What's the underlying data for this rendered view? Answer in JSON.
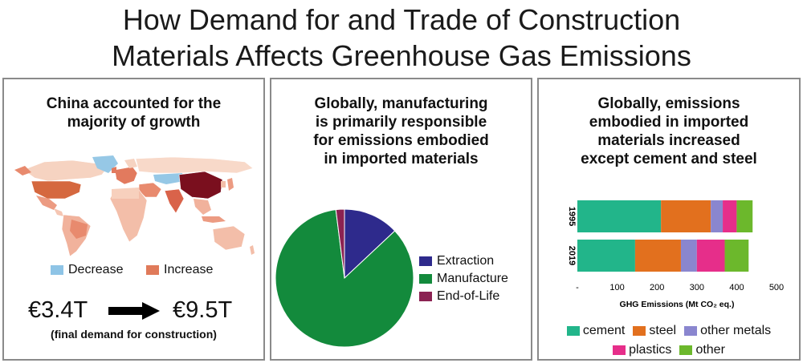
{
  "title": {
    "line1": "How Demand for and Trade of Construction",
    "line2": "Materials Affects Greenhouse Gas Emissions"
  },
  "panel1": {
    "title_lines": [
      "China accounted for the",
      "majority of growth"
    ],
    "legend": [
      {
        "label": "Decrease",
        "color": "#8ec4e6"
      },
      {
        "label": "Increase",
        "color": "#e07a5a"
      }
    ],
    "value_from": "€3.4T",
    "value_to": "€9.5T",
    "caption": "(final demand for construction)",
    "arrow_icon": "right-arrow-icon"
  },
  "panel2": {
    "title_lines": [
      "Globally, manufacturing",
      "is primarily responsible",
      "for emissions embodied",
      "in imported materials"
    ],
    "chart_data": {
      "type": "pie",
      "slices": [
        {
          "label": "Extraction",
          "value": 13,
          "color": "#2e2a8c"
        },
        {
          "label": "Manufacture",
          "value": 85,
          "color": "#138a3c"
        },
        {
          "label": "End-of-Life",
          "value": 2,
          "color": "#8b2252"
        }
      ]
    }
  },
  "panel3": {
    "title_lines": [
      "Globally, emissions",
      "embodied in imported",
      "materials increased",
      "except cement and steel"
    ],
    "chart_data": {
      "type": "bar",
      "orientation": "horizontal",
      "stacked": true,
      "categories": [
        "1995",
        "2019"
      ],
      "series": [
        {
          "name": "cement",
          "color": "#22b58a",
          "values": [
            210,
            145
          ]
        },
        {
          "name": "steel",
          "color": "#e2701e",
          "values": [
            125,
            115
          ]
        },
        {
          "name": "other metals",
          "color": "#8a86cf",
          "values": [
            30,
            40
          ]
        },
        {
          "name": "plastics",
          "color": "#e62e8a",
          "values": [
            35,
            70
          ]
        },
        {
          "name": "other",
          "color": "#6cb82c",
          "values": [
            40,
            60
          ]
        }
      ],
      "xlim": [
        0,
        500
      ],
      "xticks": [
        "-",
        "100",
        "200",
        "300",
        "400",
        "500"
      ],
      "xlabel": "GHG Emissions (Mt CO₂ eq.)"
    }
  }
}
